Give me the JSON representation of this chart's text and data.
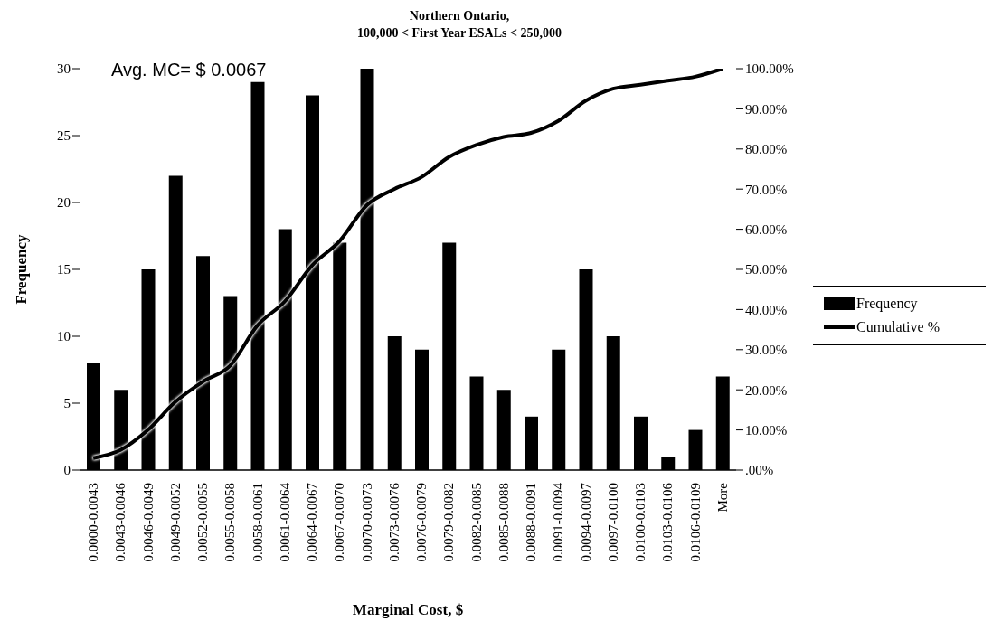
{
  "chart_data": {
    "type": "bar",
    "title": "Northern Ontario,",
    "subtitle": "100,000 < First Year ESALs < 250,000",
    "xlabel": "Marginal Cost, $",
    "ylabel": "Frequency",
    "categories": [
      "0.0000-0.0043",
      "0.0043-0.0046",
      "0.0046-0.0049",
      "0.0049-0.0052",
      "0.0052-0.0055",
      "0.0055-0.0058",
      "0.0058-0.0061",
      "0.0061-0.0064",
      "0.0064-0.0067",
      "0.0067-0.0070",
      "0.0070-0.0073",
      "0.0073-0.0076",
      "0.0076-0.0079",
      "0.0079-0.0082",
      "0.0082-0.0085",
      "0.0085-0.0088",
      "0.0088-0.0091",
      "0.0091-0.0094",
      "0.0094-0.0097",
      "0.0097-0.0100",
      "0.0100-0.0103",
      "0.0103-0.0106",
      "0.0106-0.0109",
      "More"
    ],
    "series": [
      {
        "name": "Frequency",
        "color": "#000000",
        "values": [
          8,
          6,
          15,
          22,
          16,
          13,
          29,
          18,
          28,
          17,
          30,
          10,
          9,
          17,
          7,
          6,
          4,
          9,
          15,
          10,
          4,
          1,
          3,
          7
        ]
      },
      {
        "name": "Cumulative %",
        "type": "line",
        "axis": "y2",
        "color": "#000000",
        "values": [
          3,
          5,
          10,
          17,
          22,
          26,
          36,
          42,
          51,
          57,
          66,
          70,
          73,
          78,
          81,
          83,
          84,
          87,
          92,
          95,
          96,
          97,
          98,
          100
        ]
      }
    ],
    "ylim": [
      0,
      30
    ],
    "yticks": [
      0,
      5,
      10,
      15,
      20,
      25,
      30
    ],
    "y2lim": [
      0,
      100
    ],
    "y2ticks": [
      {
        "value": 0,
        "label": ".00%"
      },
      {
        "value": 10,
        "label": "10.00%"
      },
      {
        "value": 20,
        "label": "20.00%"
      },
      {
        "value": 30,
        "label": "30.00%"
      },
      {
        "value": 40,
        "label": "40.00%"
      },
      {
        "value": 50,
        "label": "50.00%"
      },
      {
        "value": 60,
        "label": "60.00%"
      },
      {
        "value": 70,
        "label": "70.00%"
      },
      {
        "value": 80,
        "label": "80.00%"
      },
      {
        "value": 90,
        "label": "90.00%"
      },
      {
        "value": 100,
        "label": "100.00%"
      }
    ],
    "annotations": [
      "Avg. MC= $ 0.0067"
    ],
    "grid": false,
    "legend": "right",
    "marker": "none"
  }
}
